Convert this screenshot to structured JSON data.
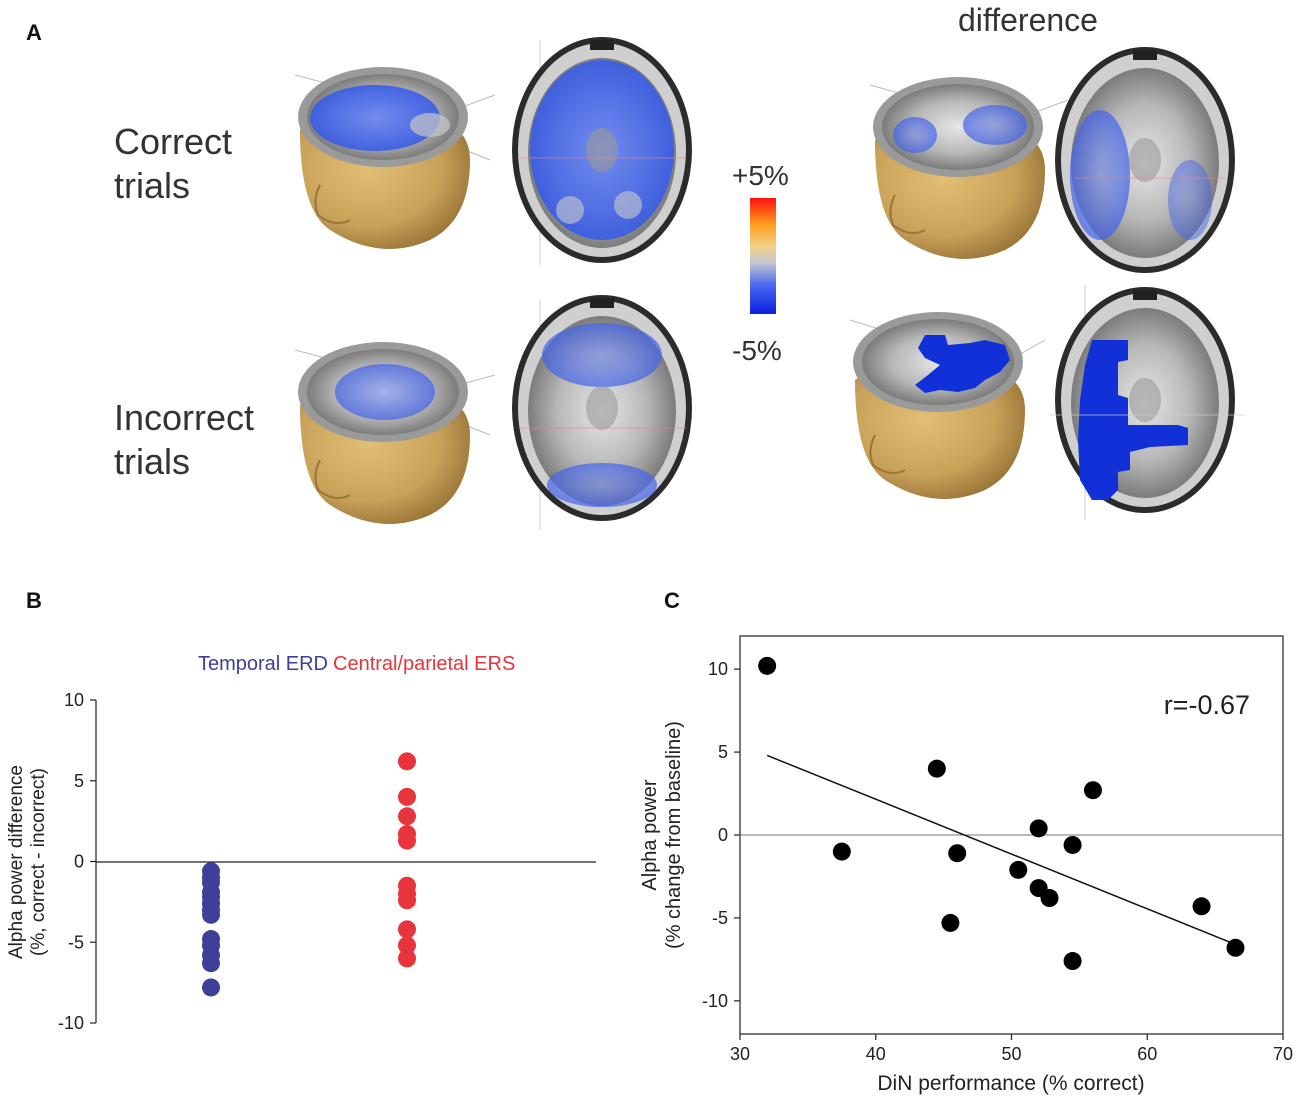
{
  "panels": {
    "a": "A",
    "b": "B",
    "c": "C"
  },
  "panel_a": {
    "difference_title": "difference",
    "row_correct": [
      "Correct",
      "trials"
    ],
    "row_incorrect": [
      "Incorrect",
      "trials"
    ],
    "colorbar": {
      "max_label": "+5%",
      "min_label": "-5%"
    },
    "colors": {
      "skin": "#c9a25a",
      "activation": "#3a5be8",
      "significant": "#1230d8"
    }
  },
  "chart_data": [
    {
      "type": "scatter",
      "title": "",
      "legend": [
        {
          "name": "Temporal ERD",
          "color": "#3d3f98"
        },
        {
          "name": "Central/parietal ERS",
          "color": "#e8343d"
        }
      ],
      "ylabel_line1": "Alpha power difference",
      "ylabel_line2": "(%, correct - incorrect)",
      "ylim": [
        -10,
        10
      ],
      "yticks": [
        "10",
        "5",
        "0",
        "-5",
        "-10"
      ],
      "ytick_values": [
        10,
        5,
        0,
        -5,
        -10
      ],
      "series": [
        {
          "name": "Temporal ERD",
          "color": "#3d3f98",
          "values": [
            -0.6,
            -1.0,
            -1.3,
            -1.9,
            -2.2,
            -2.6,
            -3.0,
            -3.3,
            -4.8,
            -5.2,
            -5.8,
            -6.3,
            -7.8
          ]
        },
        {
          "name": "Central/parietal ERS",
          "color": "#e8343d",
          "values": [
            6.2,
            4.0,
            2.8,
            1.7,
            1.3,
            -1.5,
            -2.0,
            -2.4,
            -4.2,
            -5.2,
            -6.0
          ]
        }
      ]
    },
    {
      "type": "scatter",
      "title": "",
      "annotation": "r=-0.67",
      "xlabel": "DiN performance (% correct)",
      "ylabel_line1": "Alpha power",
      "ylabel_line2": "(% change from baseline)",
      "xlim": [
        30,
        70
      ],
      "ylim": [
        -12,
        12
      ],
      "xticks": [
        "30",
        "40",
        "50",
        "60",
        "70"
      ],
      "xtick_values": [
        30,
        40,
        50,
        60,
        70
      ],
      "yticks": [
        "10",
        "5",
        "0",
        "-5",
        "-10"
      ],
      "ytick_values": [
        10,
        5,
        0,
        -5,
        -10
      ],
      "points": [
        {
          "x": 32.0,
          "y": 10.2
        },
        {
          "x": 37.5,
          "y": -1.0
        },
        {
          "x": 44.5,
          "y": 4.0
        },
        {
          "x": 45.5,
          "y": -5.3
        },
        {
          "x": 46.0,
          "y": -1.1
        },
        {
          "x": 50.5,
          "y": -2.1
        },
        {
          "x": 52.0,
          "y": 0.4
        },
        {
          "x": 52.0,
          "y": -3.2
        },
        {
          "x": 52.8,
          "y": -3.8
        },
        {
          "x": 54.5,
          "y": -0.6
        },
        {
          "x": 54.5,
          "y": -7.6
        },
        {
          "x": 56.0,
          "y": 2.7
        },
        {
          "x": 64.0,
          "y": -4.3
        },
        {
          "x": 66.5,
          "y": -6.8
        }
      ],
      "fit_line": {
        "x": [
          32.0,
          66.5
        ],
        "y": [
          4.8,
          -6.6
        ]
      }
    }
  ]
}
